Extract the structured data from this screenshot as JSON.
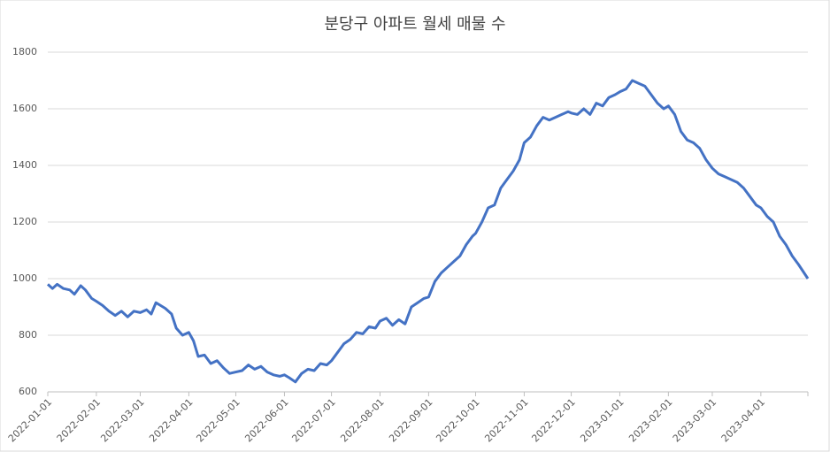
{
  "chart_data": {
    "type": "line",
    "title": "분당구 아파트 월세 매물 수",
    "x": [
      "2022-01-01",
      "2022-01-04",
      "2022-01-07",
      "2022-01-11",
      "2022-01-15",
      "2022-01-18",
      "2022-01-22",
      "2022-01-25",
      "2022-01-29",
      "2022-02-01",
      "2022-02-05",
      "2022-02-09",
      "2022-02-13",
      "2022-02-17",
      "2022-02-21",
      "2022-02-25",
      "2022-03-01",
      "2022-03-05",
      "2022-03-08",
      "2022-03-11",
      "2022-03-14",
      "2022-03-17",
      "2022-03-21",
      "2022-03-24",
      "2022-03-28",
      "2022-04-01",
      "2022-04-04",
      "2022-04-07",
      "2022-04-11",
      "2022-04-15",
      "2022-04-19",
      "2022-04-23",
      "2022-04-27",
      "2022-05-01",
      "2022-05-05",
      "2022-05-09",
      "2022-05-13",
      "2022-05-17",
      "2022-05-21",
      "2022-05-25",
      "2022-05-29",
      "2022-06-01",
      "2022-06-04",
      "2022-06-08",
      "2022-06-12",
      "2022-06-16",
      "2022-06-20",
      "2022-06-24",
      "2022-06-28",
      "2022-07-01",
      "2022-07-05",
      "2022-07-09",
      "2022-07-13",
      "2022-07-17",
      "2022-07-21",
      "2022-07-25",
      "2022-07-29",
      "2022-08-01",
      "2022-08-05",
      "2022-08-09",
      "2022-08-13",
      "2022-08-17",
      "2022-08-21",
      "2022-08-25",
      "2022-08-29",
      "2022-09-01",
      "2022-09-05",
      "2022-09-09",
      "2022-09-13",
      "2022-09-17",
      "2022-09-21",
      "2022-09-25",
      "2022-09-29",
      "2022-10-01",
      "2022-10-05",
      "2022-10-09",
      "2022-10-13",
      "2022-10-17",
      "2022-10-21",
      "2022-10-25",
      "2022-10-29",
      "2022-11-01",
      "2022-11-05",
      "2022-11-09",
      "2022-11-13",
      "2022-11-17",
      "2022-11-21",
      "2022-11-25",
      "2022-11-29",
      "2022-12-01",
      "2022-12-05",
      "2022-12-09",
      "2022-12-13",
      "2022-12-17",
      "2022-12-21",
      "2022-12-25",
      "2022-12-29",
      "2023-01-01",
      "2023-01-05",
      "2023-01-09",
      "2023-01-13",
      "2023-01-17",
      "2023-01-21",
      "2023-01-25",
      "2023-01-29",
      "2023-02-01",
      "2023-02-05",
      "2023-02-09",
      "2023-02-13",
      "2023-02-17",
      "2023-02-21",
      "2023-02-25",
      "2023-03-01",
      "2023-03-05",
      "2023-03-09",
      "2023-03-13",
      "2023-03-17",
      "2023-03-21",
      "2023-03-25",
      "2023-03-29",
      "2023-04-01",
      "2023-04-05",
      "2023-04-09",
      "2023-04-13",
      "2023-04-17",
      "2023-04-21",
      "2023-04-25",
      "2023-05-01"
    ],
    "series": [
      {
        "color": "#4472c4",
        "values": [
          980,
          965,
          980,
          965,
          960,
          945,
          975,
          960,
          930,
          920,
          905,
          885,
          870,
          885,
          865,
          885,
          880,
          890,
          875,
          915,
          905,
          895,
          875,
          825,
          800,
          810,
          780,
          725,
          730,
          700,
          710,
          685,
          665,
          670,
          675,
          695,
          680,
          690,
          670,
          660,
          655,
          660,
          650,
          635,
          665,
          680,
          675,
          700,
          695,
          710,
          740,
          770,
          785,
          810,
          805,
          830,
          825,
          850,
          860,
          835,
          855,
          840,
          900,
          915,
          930,
          935,
          990,
          1020,
          1040,
          1060,
          1080,
          1120,
          1150,
          1160,
          1200,
          1250,
          1260,
          1320,
          1350,
          1380,
          1420,
          1480,
          1500,
          1540,
          1570,
          1560,
          1570,
          1580,
          1590,
          1585,
          1580,
          1600,
          1580,
          1620,
          1610,
          1640,
          1650,
          1660,
          1670,
          1700,
          1690,
          1680,
          1650,
          1620,
          1600,
          1610,
          1580,
          1520,
          1490,
          1480,
          1460,
          1420,
          1390,
          1370,
          1360,
          1350,
          1340,
          1320,
          1290,
          1260,
          1250,
          1220,
          1200,
          1150,
          1120,
          1080,
          1050,
          1000
        ]
      }
    ],
    "xlim": [
      "2022-01-01",
      "2023-05-01"
    ],
    "xticks": [
      "2022-01-01",
      "2022-02-01",
      "2022-03-01",
      "2022-04-01",
      "2022-05-01",
      "2022-06-01",
      "2022-07-01",
      "2022-08-01",
      "2022-09-01",
      "2022-10-01",
      "2022-11-01",
      "2022-12-01",
      "2023-01-01",
      "2023-02-01",
      "2023-03-01",
      "2023-04-01"
    ],
    "ylim": [
      600,
      1800
    ],
    "yticks": [
      600,
      800,
      1000,
      1200,
      1400,
      1600,
      1800
    ],
    "grid": true
  }
}
